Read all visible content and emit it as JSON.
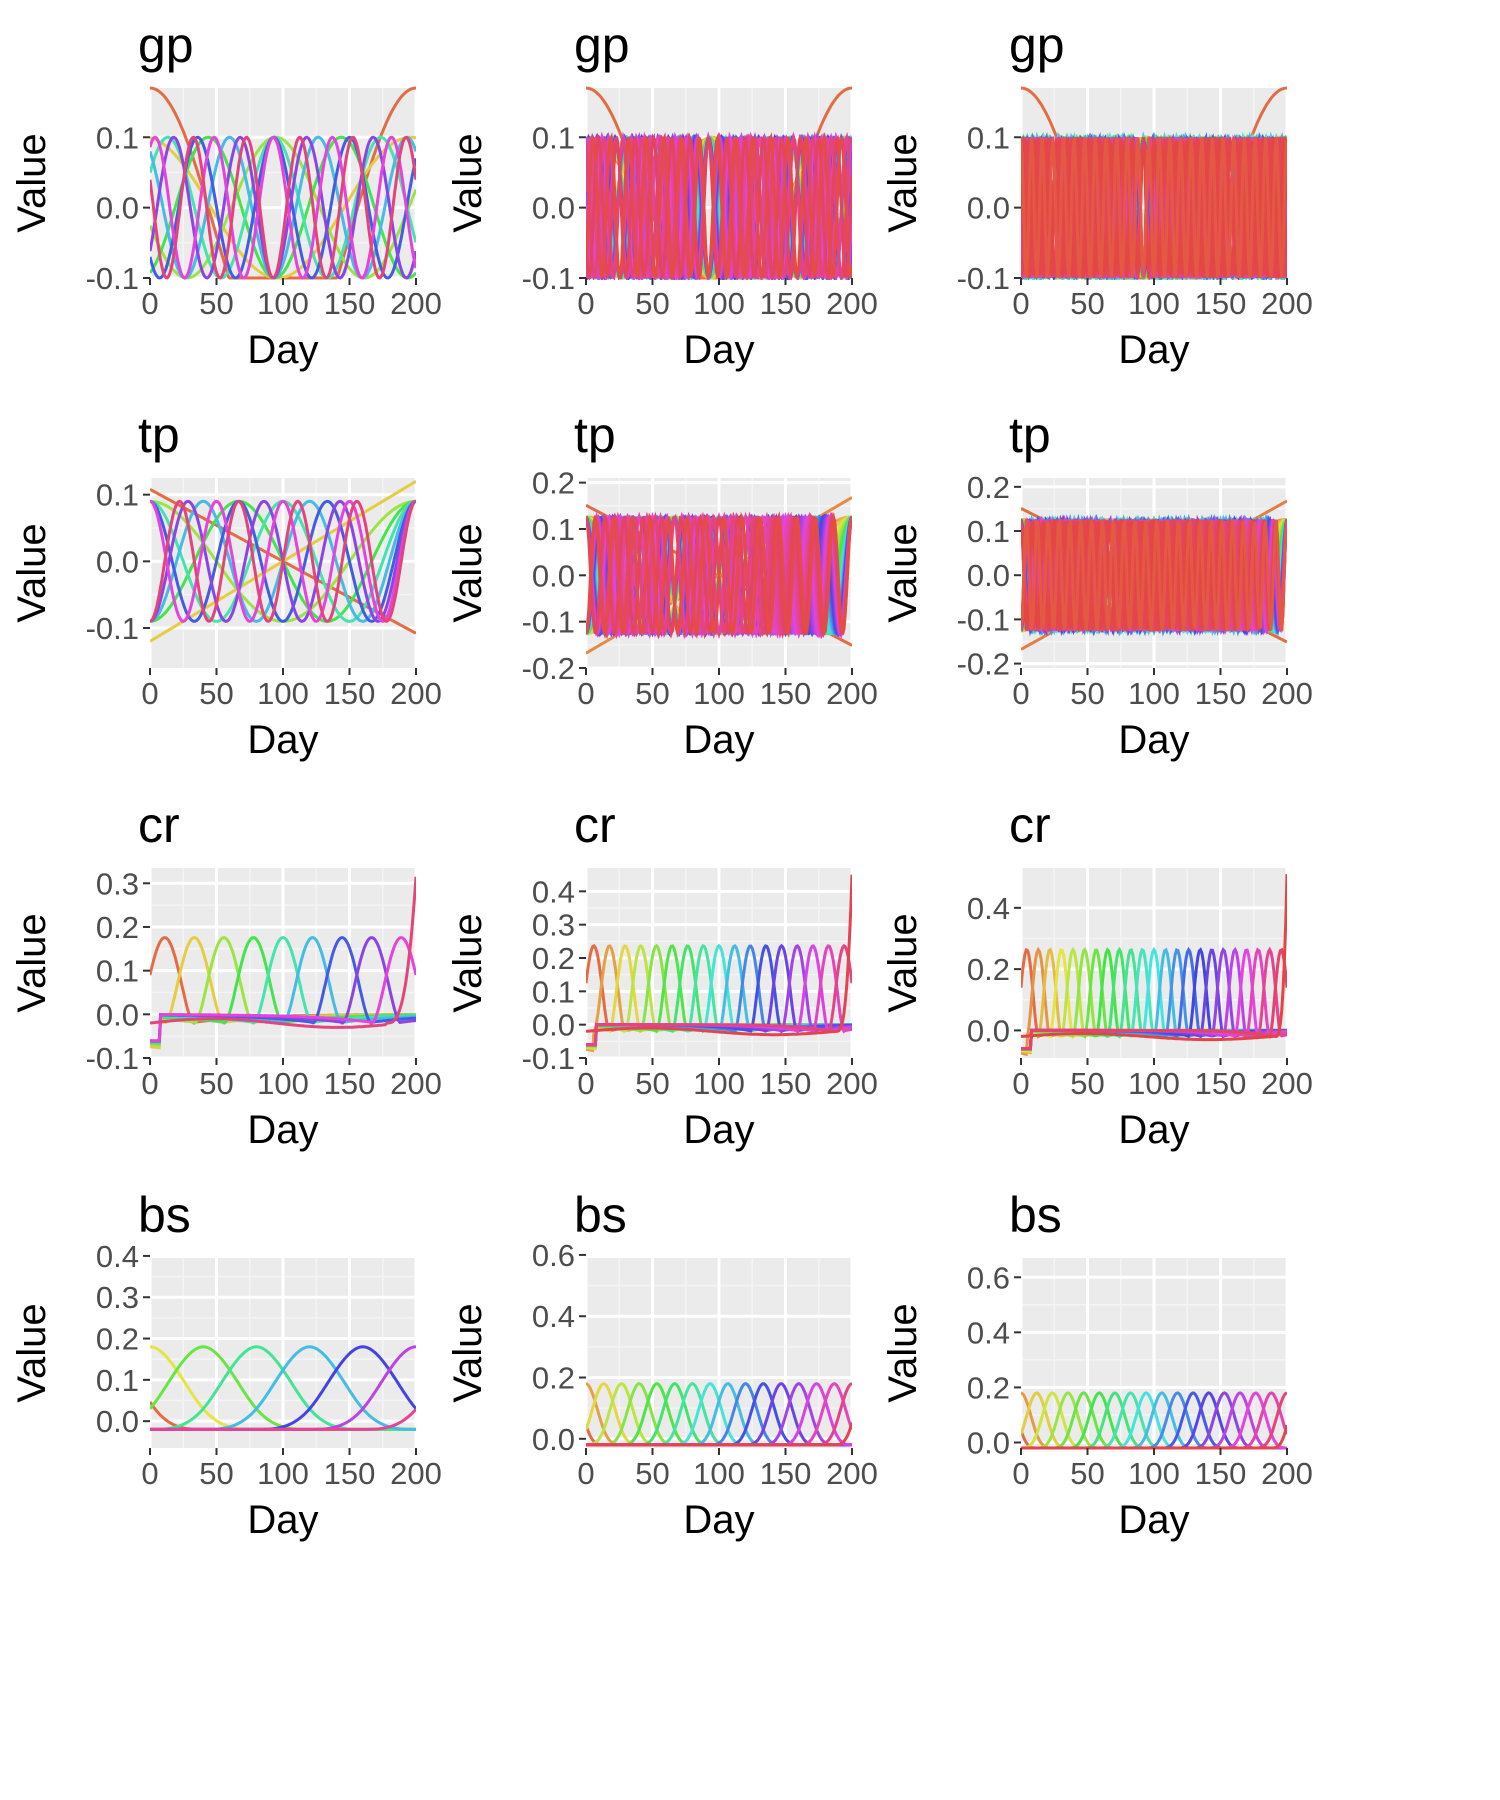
{
  "chart_data": [
    {
      "type": "line",
      "title": "gp",
      "basis": "gp",
      "k": 10,
      "xlabel": "Day",
      "ylabel": "Value",
      "xlim": [
        0,
        200
      ],
      "ylim": [
        -0.1,
        0.17
      ],
      "xticks": [
        0,
        50,
        100,
        150,
        200
      ],
      "yticks": [
        -0.1,
        0.0,
        0.1
      ],
      "ytick_labels": [
        "-0.1",
        "0.0",
        "0.1"
      ],
      "background": "#ebebeb",
      "grid": true
    },
    {
      "type": "line",
      "title": "gp",
      "basis": "gp",
      "k": 30,
      "xlabel": "Day",
      "ylabel": "Value",
      "xlim": [
        0,
        200
      ],
      "ylim": [
        -0.1,
        0.17
      ],
      "xticks": [
        0,
        50,
        100,
        150,
        200
      ],
      "yticks": [
        -0.1,
        0.0,
        0.1
      ],
      "ytick_labels": [
        "-0.1",
        "0.0",
        "0.1"
      ],
      "background": "#ebebeb",
      "grid": true
    },
    {
      "type": "line",
      "title": "gp",
      "basis": "gp",
      "k": 50,
      "xlabel": "Day",
      "ylabel": "Value",
      "xlim": [
        0,
        200
      ],
      "ylim": [
        -0.1,
        0.17
      ],
      "xticks": [
        0,
        50,
        100,
        150,
        200
      ],
      "yticks": [
        -0.1,
        0.0,
        0.1
      ],
      "ytick_labels": [
        "-0.1",
        "0.0",
        "0.1"
      ],
      "background": "#ebebeb",
      "grid": true
    },
    {
      "type": "line",
      "title": "tp",
      "basis": "tp",
      "k": 10,
      "xlabel": "Day",
      "ylabel": "Value",
      "xlim": [
        0,
        200
      ],
      "ylim": [
        -0.16,
        0.125
      ],
      "xticks": [
        0,
        50,
        100,
        150,
        200
      ],
      "yticks": [
        -0.1,
        0.0,
        0.1
      ],
      "ytick_labels": [
        "-0.1",
        "0.0",
        "0.1"
      ],
      "background": "#ebebeb",
      "grid": true
    },
    {
      "type": "line",
      "title": "tp",
      "basis": "tp",
      "k": 30,
      "xlabel": "Day",
      "ylabel": "Value",
      "xlim": [
        0,
        200
      ],
      "ylim": [
        -0.2,
        0.21
      ],
      "xticks": [
        0,
        50,
        100,
        150,
        200
      ],
      "yticks": [
        -0.2,
        -0.1,
        0.0,
        0.1,
        0.2
      ],
      "ytick_labels": [
        "-0.2",
        "-0.1",
        "0.0",
        "0.1",
        "0.2"
      ],
      "background": "#ebebeb",
      "grid": true
    },
    {
      "type": "line",
      "title": "tp",
      "basis": "tp",
      "k": 50,
      "xlabel": "Day",
      "ylabel": "Value",
      "xlim": [
        0,
        200
      ],
      "ylim": [
        -0.21,
        0.22
      ],
      "xticks": [
        0,
        50,
        100,
        150,
        200
      ],
      "yticks": [
        -0.2,
        -0.1,
        0.0,
        0.1,
        0.2
      ],
      "ytick_labels": [
        "-0.2",
        "-0.1",
        "0.0",
        "0.1",
        "0.2"
      ],
      "background": "#ebebeb",
      "grid": true
    },
    {
      "type": "line",
      "title": "cr",
      "basis": "cr",
      "k": 10,
      "xlabel": "Day",
      "ylabel": "Value",
      "xlim": [
        0,
        200
      ],
      "ylim": [
        -0.1,
        0.335
      ],
      "xticks": [
        0,
        50,
        100,
        150,
        200
      ],
      "yticks": [
        -0.1,
        0.0,
        0.1,
        0.2,
        0.3
      ],
      "ytick_labels": [
        "-0.1",
        "0.0",
        "0.1",
        "0.2",
        "0.3"
      ],
      "background": "#ebebeb",
      "grid": true
    },
    {
      "type": "line",
      "title": "cr",
      "basis": "cr",
      "k": 18,
      "xlabel": "Day",
      "ylabel": "Value",
      "xlim": [
        0,
        200
      ],
      "ylim": [
        -0.1,
        0.47
      ],
      "xticks": [
        0,
        50,
        100,
        150,
        200
      ],
      "yticks": [
        -0.1,
        0.0,
        0.1,
        0.2,
        0.3,
        0.4
      ],
      "ytick_labels": [
        "-0.1",
        "0.0",
        "0.1",
        "0.2",
        "0.3",
        "0.4"
      ],
      "background": "#ebebeb",
      "grid": true
    },
    {
      "type": "line",
      "title": "cr",
      "basis": "cr",
      "k": 24,
      "xlabel": "Day",
      "ylabel": "Value",
      "xlim": [
        0,
        200
      ],
      "ylim": [
        -0.09,
        0.53
      ],
      "xticks": [
        0,
        50,
        100,
        150,
        200
      ],
      "yticks": [
        0.0,
        0.2,
        0.4
      ],
      "ytick_labels": [
        "0.0",
        "0.2",
        "0.4"
      ],
      "background": "#ebebeb",
      "grid": true
    },
    {
      "type": "line",
      "title": "bs",
      "basis": "bs",
      "k": 8,
      "xlabel": "Day",
      "ylabel": "Value",
      "xlim": [
        0,
        200
      ],
      "ylim": [
        -0.065,
        0.395
      ],
      "xticks": [
        0,
        50,
        100,
        150,
        200
      ],
      "yticks": [
        0.0,
        0.1,
        0.2,
        0.3,
        0.4
      ],
      "ytick_labels": [
        "0.0",
        "0.1",
        "0.2",
        "0.3",
        "0.4"
      ],
      "background": "#ebebeb",
      "grid": true
    },
    {
      "type": "line",
      "title": "bs",
      "basis": "bs",
      "k": 18,
      "xlabel": "Day",
      "ylabel": "Value",
      "xlim": [
        0,
        200
      ],
      "ylim": [
        -0.03,
        0.59
      ],
      "xticks": [
        0,
        50,
        100,
        150,
        200
      ],
      "yticks": [
        0.0,
        0.2,
        0.4,
        0.6
      ],
      "ytick_labels": [
        "0.0",
        "0.2",
        "0.4",
        "0.6"
      ],
      "background": "#ebebeb",
      "grid": true
    },
    {
      "type": "line",
      "title": "bs",
      "basis": "bs",
      "k": 20,
      "xlabel": "Day",
      "ylabel": "Value",
      "xlim": [
        0,
        200
      ],
      "ylim": [
        -0.02,
        0.67
      ],
      "xticks": [
        0,
        50,
        100,
        150,
        200
      ],
      "yticks": [
        0.0,
        0.2,
        0.4,
        0.6
      ],
      "ytick_labels": [
        "0.0",
        "0.2",
        "0.4",
        "0.6"
      ],
      "background": "#ebebeb",
      "grid": true
    }
  ]
}
